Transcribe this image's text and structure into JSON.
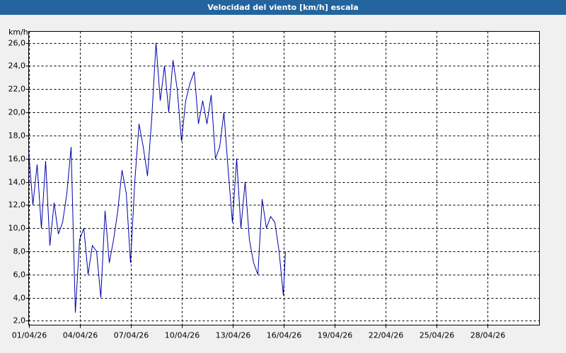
{
  "chart_data": {
    "type": "line",
    "title": "Velocidad del viento [km/h] escala",
    "y_label": "km/h",
    "x": [
      1.0,
      1.25,
      1.5,
      1.75,
      2.0,
      2.25,
      2.5,
      2.75,
      3.0,
      3.25,
      3.5,
      3.75,
      4.0,
      4.25,
      4.5,
      4.75,
      5.0,
      5.25,
      5.5,
      5.75,
      6.0,
      6.25,
      6.5,
      6.75,
      7.0,
      7.25,
      7.5,
      7.75,
      8.0,
      8.25,
      8.5,
      8.75,
      9.0,
      9.25,
      9.5,
      9.75,
      10.0,
      10.25,
      10.5,
      10.75,
      11.0,
      11.25,
      11.5,
      11.75,
      12.0,
      12.25,
      12.5,
      12.75,
      13.0,
      13.25,
      13.5,
      13.75,
      14.0,
      14.25,
      14.5,
      14.75,
      15.0,
      15.25,
      15.5,
      15.75,
      16.0,
      16.125
    ],
    "series": [
      {
        "color": "#0000a8",
        "values": [
          16.6,
          12,
          15.5,
          10,
          15.8,
          8.5,
          12.2,
          9.5,
          10.5,
          13,
          17,
          2.7,
          9,
          10,
          6,
          8.5,
          8,
          4,
          11.5,
          7,
          9,
          11.5,
          15,
          13,
          7,
          14,
          19,
          17,
          14.5,
          19.5,
          26,
          21,
          24,
          20,
          24.5,
          22,
          17.5,
          21,
          22.5,
          23.5,
          19,
          21,
          19,
          21.5,
          16,
          17,
          20,
          15,
          10.5,
          16,
          10,
          14,
          9,
          7,
          6,
          12.5,
          10,
          11,
          10.5,
          8,
          4.2,
          8
        ]
      }
    ],
    "xlim": [
      1,
      31.08
    ],
    "xticks": [
      {
        "value": 1,
        "label": "01/04/26"
      },
      {
        "value": 4,
        "label": "04/04/26"
      },
      {
        "value": 7,
        "label": "07/04/26"
      },
      {
        "value": 10,
        "label": "10/04/26"
      },
      {
        "value": 13,
        "label": "13/04/26"
      },
      {
        "value": 16,
        "label": "16/04/26"
      },
      {
        "value": 19,
        "label": "19/04/26"
      },
      {
        "value": 22,
        "label": "22/04/26"
      },
      {
        "value": 25,
        "label": "25/04/26"
      },
      {
        "value": 28,
        "label": "28/04/26"
      }
    ],
    "ylim": [
      1.63,
      26.98
    ],
    "yticks": [
      {
        "value": 2,
        "label": "2,0"
      },
      {
        "value": 4,
        "label": "4,0"
      },
      {
        "value": 6,
        "label": "6,0"
      },
      {
        "value": 8,
        "label": "8,0"
      },
      {
        "value": 10,
        "label": "10,0"
      },
      {
        "value": 12,
        "label": "12,0"
      },
      {
        "value": 14,
        "label": "14,0"
      },
      {
        "value": 16,
        "label": "16,0"
      },
      {
        "value": 18,
        "label": "18,0"
      },
      {
        "value": 20,
        "label": "20,0"
      },
      {
        "value": 22,
        "label": "22,0"
      },
      {
        "value": 24,
        "label": "24,0"
      },
      {
        "value": 26,
        "label": "26,0"
      }
    ],
    "grid": true
  }
}
